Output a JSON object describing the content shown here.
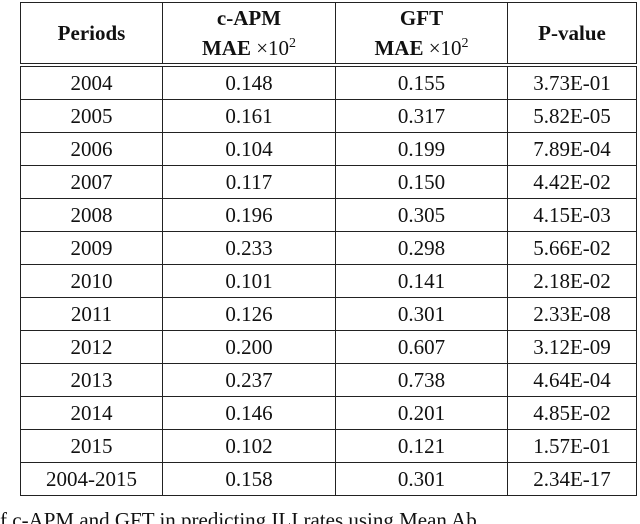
{
  "table": {
    "headers": [
      {
        "top": "Periods"
      },
      {
        "top": "c-APM",
        "bottom": "MAE",
        "op": "×10",
        "exponent": "2"
      },
      {
        "top": "GFT",
        "bottom": "MAE",
        "op": "×10",
        "exponent": "2"
      },
      {
        "top": "P-value"
      }
    ],
    "rows": [
      [
        "2004",
        "0.148",
        "0.155",
        "3.73E-01"
      ],
      [
        "2005",
        "0.161",
        "0.317",
        "5.82E-05"
      ],
      [
        "2006",
        "0.104",
        "0.199",
        "7.89E-04"
      ],
      [
        "2007",
        "0.117",
        "0.150",
        "4.42E-02"
      ],
      [
        "2008",
        "0.196",
        "0.305",
        "4.15E-03"
      ],
      [
        "2009",
        "0.233",
        "0.298",
        "5.66E-02"
      ],
      [
        "2010",
        "0.101",
        "0.141",
        "2.18E-02"
      ],
      [
        "2011",
        "0.126",
        "0.301",
        "2.33E-08"
      ],
      [
        "2012",
        "0.200",
        "0.607",
        "3.12E-09"
      ],
      [
        "2013",
        "0.237",
        "0.738",
        "4.64E-04"
      ],
      [
        "2014",
        "0.146",
        "0.201",
        "4.85E-02"
      ],
      [
        "2015",
        "0.102",
        "0.121",
        "1.57E-01"
      ],
      [
        "2004-2015",
        "0.158",
        "0.301",
        "2.34E-17"
      ]
    ]
  },
  "caption": "f c-APM and GFT in predicting ILI rates using Mean Ab"
}
